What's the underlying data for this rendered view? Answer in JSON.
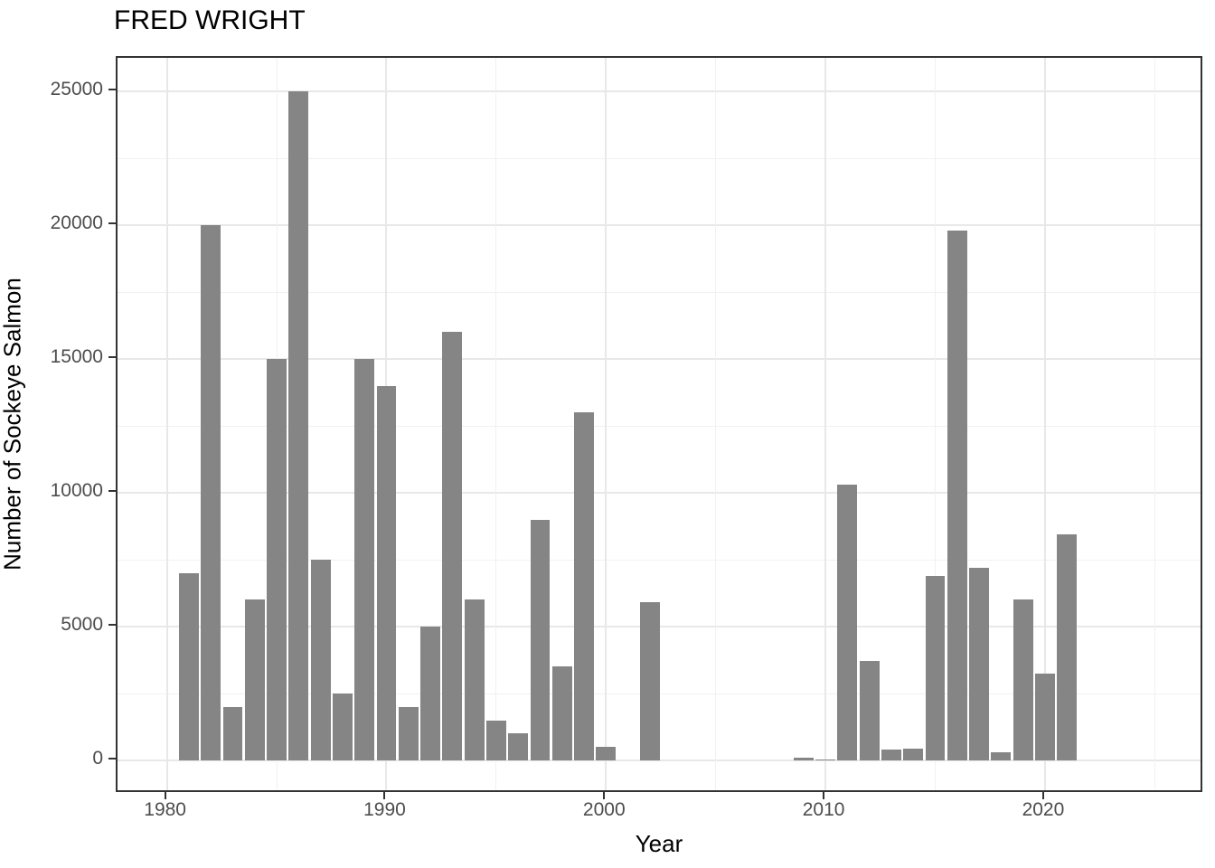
{
  "title": "FRED WRIGHT",
  "chart_data": {
    "type": "bar",
    "title": "FRED WRIGHT",
    "xlabel": "Year",
    "ylabel": "Number of Sockeye Salmon",
    "bar_color": "#858585",
    "grid": true,
    "legend": "none",
    "xlim": [
      1977.75,
      2027.25
    ],
    "ylim": [
      -1250,
      26250
    ],
    "x_ticks": [
      1980,
      1990,
      2000,
      2010,
      2020
    ],
    "x_minor_ticks": [
      1985,
      1995,
      2005,
      2015,
      2025
    ],
    "y_ticks": [
      0,
      5000,
      10000,
      15000,
      20000,
      25000
    ],
    "y_minor_ticks": [
      2500,
      7500,
      12500,
      17500,
      22500
    ],
    "bar_width_years": 0.9,
    "points": [
      {
        "year": 1981,
        "value": 7000
      },
      {
        "year": 1982,
        "value": 20000
      },
      {
        "year": 1983,
        "value": 2000
      },
      {
        "year": 1984,
        "value": 6000
      },
      {
        "year": 1985,
        "value": 15000
      },
      {
        "year": 1986,
        "value": 25000
      },
      {
        "year": 1987,
        "value": 7500
      },
      {
        "year": 1988,
        "value": 2500
      },
      {
        "year": 1989,
        "value": 15000
      },
      {
        "year": 1990,
        "value": 14000
      },
      {
        "year": 1991,
        "value": 2000
      },
      {
        "year": 1992,
        "value": 5000
      },
      {
        "year": 1993,
        "value": 16000
      },
      {
        "year": 1994,
        "value": 6000
      },
      {
        "year": 1995,
        "value": 1500
      },
      {
        "year": 1996,
        "value": 1000
      },
      {
        "year": 1997,
        "value": 9000
      },
      {
        "year": 1998,
        "value": 3500
      },
      {
        "year": 1999,
        "value": 13000
      },
      {
        "year": 2000,
        "value": 500
      },
      {
        "year": 2002,
        "value": 5900
      },
      {
        "year": 2009,
        "value": 100
      },
      {
        "year": 2010,
        "value": 25
      },
      {
        "year": 2011,
        "value": 10300
      },
      {
        "year": 2012,
        "value": 3700
      },
      {
        "year": 2013,
        "value": 400
      },
      {
        "year": 2014,
        "value": 450
      },
      {
        "year": 2015,
        "value": 6900
      },
      {
        "year": 2016,
        "value": 19800
      },
      {
        "year": 2017,
        "value": 7200
      },
      {
        "year": 2018,
        "value": 300
      },
      {
        "year": 2019,
        "value": 6000
      },
      {
        "year": 2020,
        "value": 3250
      },
      {
        "year": 2021,
        "value": 8450
      }
    ]
  }
}
